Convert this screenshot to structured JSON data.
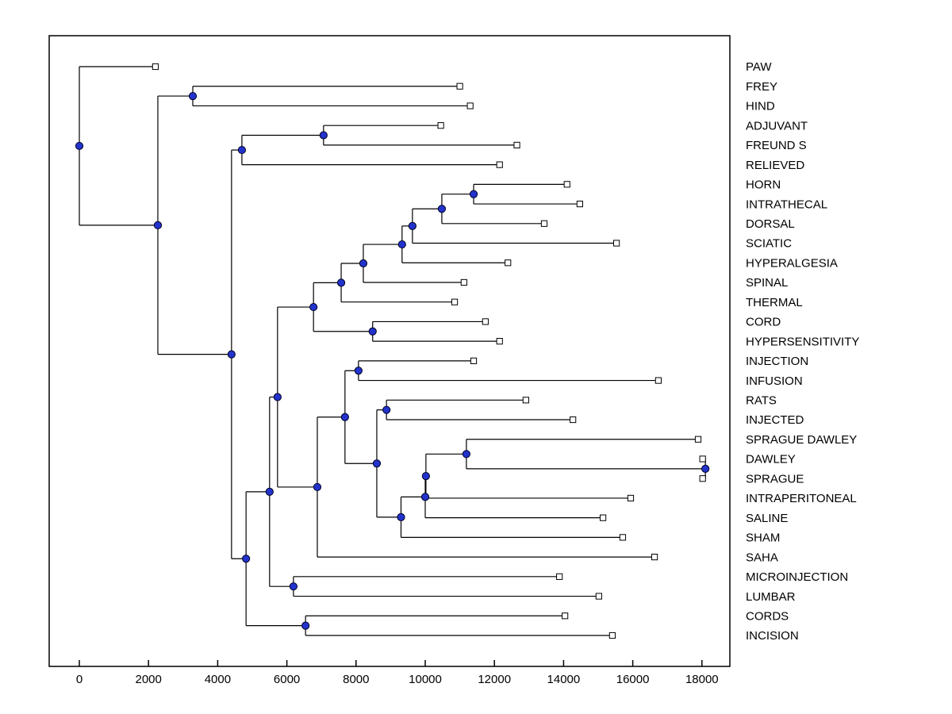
{
  "figure": {
    "background": "#ffffff"
  },
  "chart_data": {
    "type": "dendrogram",
    "orientation": "horizontal",
    "title": "",
    "xlabel": "",
    "ylabel": "",
    "legend": "none",
    "grid": false,
    "x_axis": {
      "ticks": [
        0,
        2000,
        4000,
        6000,
        8000,
        10000,
        12000,
        14000,
        16000,
        18000
      ],
      "range": [
        -900,
        18800
      ]
    },
    "leaf_order": [
      "PAW",
      "FREY",
      "HIND",
      "ADJUVANT",
      "FREUND S",
      "RELIEVED",
      "HORN",
      "INTRATHECAL",
      "DORSAL",
      "SCIATIC",
      "HYPERALGESIA",
      "SPINAL",
      "THERMAL",
      "CORD",
      "HYPERSENSITIVITY",
      "INJECTION",
      "INFUSION",
      "RATS",
      "INJECTED",
      "SPRAGUE DAWLEY",
      "DAWLEY",
      "SPRAGUE",
      "INTRAPERITONEAL",
      "SALINE",
      "SHAM",
      "SAHA",
      "MICROINJECTION",
      "LUMBAR",
      "CORDS",
      "INCISION"
    ],
    "styles": {
      "branch_color": "#000000",
      "node_fill": "#2233cc",
      "node_stroke": "#000022",
      "leaf_fill": "#ffffff",
      "leaf_stroke": "#000000",
      "axis_color": "#000000",
      "text_color": "#000000"
    },
    "tree": {
      "dist": 0,
      "children": [
        {
          "label": "PAW",
          "dist": 2200
        },
        {
          "dist": 2270,
          "children": [
            {
              "dist": 3280,
              "children": [
                {
                  "label": "FREY",
                  "dist": 11000
                },
                {
                  "label": "HIND",
                  "dist": 11300
                }
              ]
            },
            {
              "dist": 4400,
              "children": [
                {
                  "dist": 4700,
                  "children": [
                    {
                      "dist": 7060,
                      "children": [
                        {
                          "label": "ADJUVANT",
                          "dist": 10450
                        },
                        {
                          "label": "FREUND S",
                          "dist": 12650
                        }
                      ]
                    },
                    {
                      "label": "RELIEVED",
                      "dist": 12150
                    }
                  ]
                },
                {
                  "dist": 4820,
                  "children": [
                    {
                      "dist": 5500,
                      "children": [
                        {
                          "dist": 5730,
                          "children": [
                            {
                              "dist": 6770,
                              "children": [
                                {
                                  "dist": 7570,
                                  "children": [
                                    {
                                      "dist": 8210,
                                      "children": [
                                        {
                                          "dist": 9330,
                                          "children": [
                                            {
                                              "dist": 9630,
                                              "children": [
                                                {
                                                  "dist": 10480,
                                                  "children": [
                                                    {
                                                      "dist": 11400,
                                                      "children": [
                                                        {
                                                          "label": "HORN",
                                                          "dist": 14100
                                                        },
                                                        {
                                                          "label": "INTRATHECAL",
                                                          "dist": 14470
                                                        }
                                                      ]
                                                    },
                                                    {
                                                      "label": "DORSAL",
                                                      "dist": 13440
                                                    }
                                                  ]
                                                },
                                                {
                                                  "label": "SCIATIC",
                                                  "dist": 15530
                                                }
                                              ]
                                            },
                                            {
                                              "label": "HYPERALGESIA",
                                              "dist": 12390
                                            }
                                          ]
                                        },
                                        {
                                          "label": "SPINAL",
                                          "dist": 11120
                                        }
                                      ]
                                    },
                                    {
                                      "label": "THERMAL",
                                      "dist": 10850
                                    }
                                  ]
                                },
                                {
                                  "dist": 8480,
                                  "children": [
                                    {
                                      "label": "CORD",
                                      "dist": 11740
                                    },
                                    {
                                      "label": "HYPERSENSITIVITY",
                                      "dist": 12150
                                    }
                                  ]
                                }
                              ]
                            },
                            {
                              "dist": 6880,
                              "children": [
                                {
                                  "dist": 7680,
                                  "children": [
                                    {
                                      "dist": 8070,
                                      "children": [
                                        {
                                          "label": "INJECTION",
                                          "dist": 11400
                                        },
                                        {
                                          "label": "INFUSION",
                                          "dist": 16740
                                        }
                                      ]
                                    },
                                    {
                                      "dist": 8600,
                                      "children": [
                                        {
                                          "dist": 8880,
                                          "children": [
                                            {
                                              "label": "RATS",
                                              "dist": 12910
                                            },
                                            {
                                              "label": "INJECTED",
                                              "dist": 14270
                                            }
                                          ]
                                        },
                                        {
                                          "dist": 9300,
                                          "children": [
                                            {
                                              "dist": 10000,
                                              "children": [
                                                {
                                                  "dist": 10020,
                                                  "children": [
                                                    {
                                                      "dist": 11190,
                                                      "children": [
                                                        {
                                                          "label": "SPRAGUE DAWLEY",
                                                          "dist": 17890
                                                        },
                                                        {
                                                          "dist": 18100,
                                                          "children": [
                                                            {
                                                              "label": "DAWLEY",
                                                              "dist": 18020
                                                            },
                                                            {
                                                              "label": "SPRAGUE",
                                                              "dist": 18020
                                                            }
                                                          ]
                                                        }
                                                      ]
                                                    },
                                                    {
                                                      "label": "INTRAPERITONEAL",
                                                      "dist": 15940
                                                    }
                                                  ]
                                                },
                                                {
                                                  "label": "SALINE",
                                                  "dist": 15140
                                                }
                                              ]
                                            },
                                            {
                                              "label": "SHAM",
                                              "dist": 15710
                                            }
                                          ]
                                        }
                                      ]
                                    }
                                  ]
                                },
                                {
                                  "label": "SAHA",
                                  "dist": 16630
                                }
                              ]
                            }
                          ]
                        },
                        {
                          "dist": 6190,
                          "children": [
                            {
                              "label": "MICROINJECTION",
                              "dist": 13880
                            },
                            {
                              "label": "LUMBAR",
                              "dist": 15020
                            }
                          ]
                        }
                      ]
                    },
                    {
                      "dist": 6540,
                      "children": [
                        {
                          "label": "CORDS",
                          "dist": 14040
                        },
                        {
                          "label": "INCISION",
                          "dist": 15410
                        }
                      ]
                    }
                  ]
                }
              ]
            }
          ]
        }
      ]
    }
  }
}
